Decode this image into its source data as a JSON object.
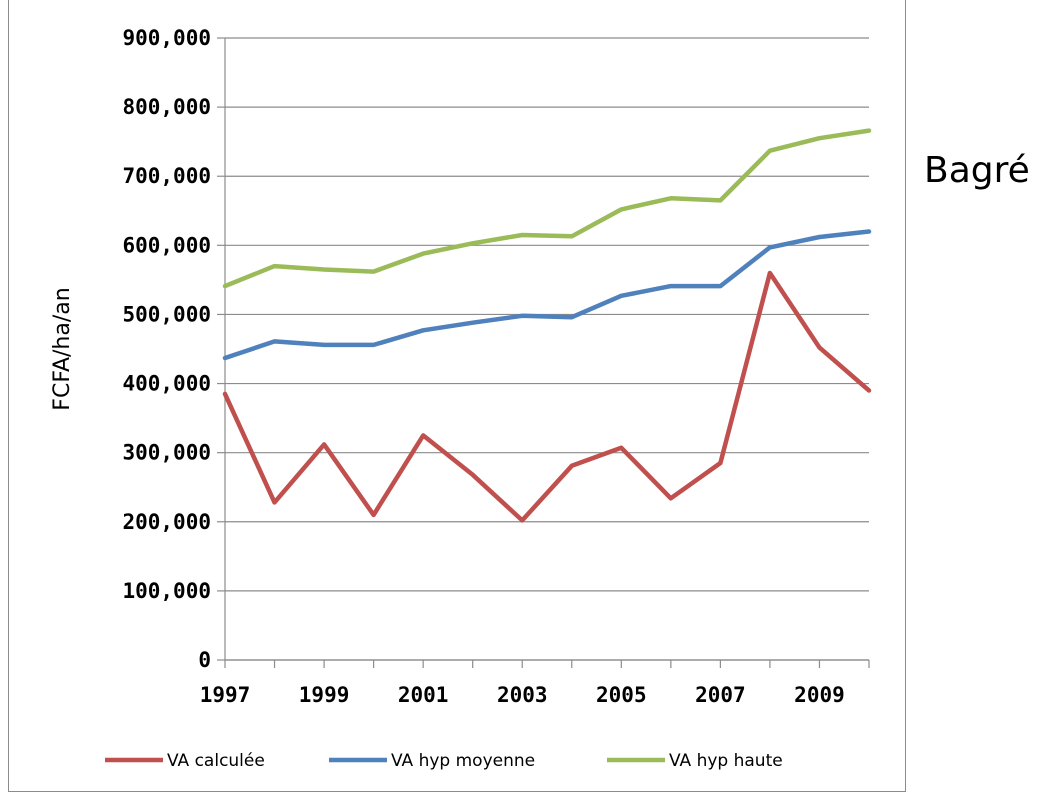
{
  "side_label": "Bagré",
  "colors": {
    "VA calculée": "#c0504d",
    "VA hyp moyenne": "#4f81bd",
    "VA hyp haute": "#9bbb59",
    "grid": "#8c8c8c"
  },
  "chart_data": {
    "type": "line",
    "ylabel": "FCFA/ha/an",
    "xlabel": "",
    "ylim": [
      0,
      900000
    ],
    "y_ticks": [
      0,
      100000,
      200000,
      300000,
      400000,
      500000,
      600000,
      700000,
      800000,
      900000
    ],
    "y_tick_labels": [
      "0",
      "100,000",
      "200,000",
      "300,000",
      "400,000",
      "500,000",
      "600,000",
      "700,000",
      "800,000",
      "900,000"
    ],
    "x": [
      1997,
      1998,
      1999,
      2000,
      2001,
      2002,
      2003,
      2004,
      2005,
      2006,
      2007,
      2008,
      2009,
      2010
    ],
    "x_tick_labels": [
      "1997",
      "1999",
      "2001",
      "2003",
      "2005",
      "2007",
      "2009"
    ],
    "grid": true,
    "legend_position": "bottom",
    "series": [
      {
        "name": "VA calculée",
        "values": [
          385000,
          228000,
          312000,
          210000,
          325000,
          268000,
          202000,
          281000,
          307000,
          234000,
          285000,
          560000,
          452000,
          390000
        ]
      },
      {
        "name": "VA hyp moyenne",
        "values": [
          437000,
          461000,
          456000,
          456000,
          477000,
          488000,
          498000,
          496000,
          527000,
          541000,
          541000,
          597000,
          612000,
          620000
        ]
      },
      {
        "name": "VA hyp haute",
        "values": [
          541000,
          570000,
          565000,
          562000,
          588000,
          603000,
          615000,
          613000,
          652000,
          668000,
          665000,
          737000,
          755000,
          766000
        ]
      }
    ]
  }
}
